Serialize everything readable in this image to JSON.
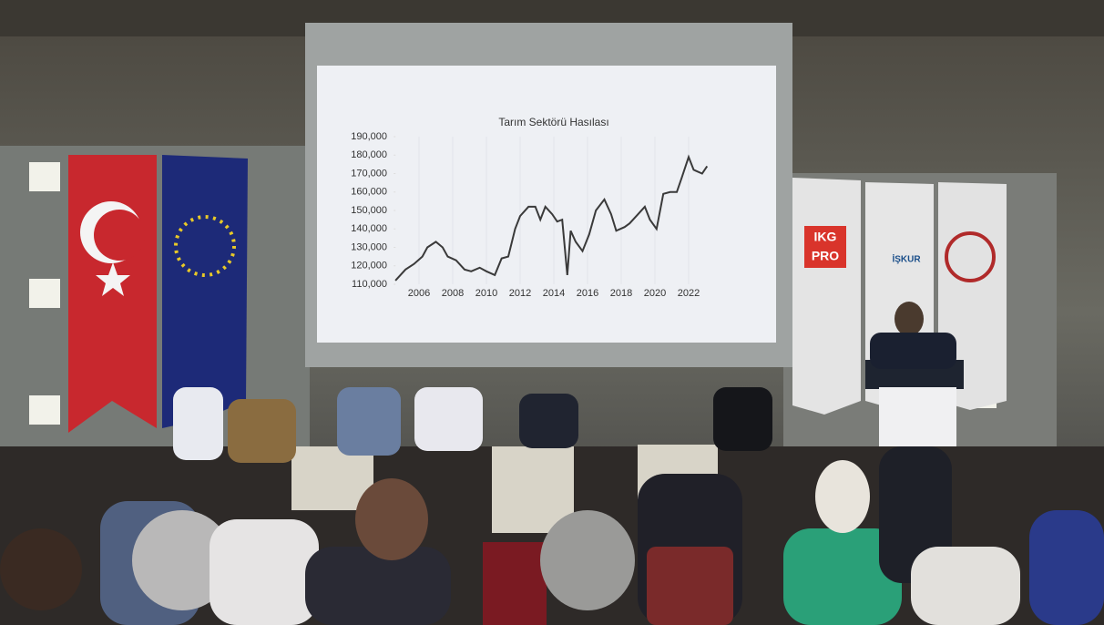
{
  "chart_data": {
    "type": "line",
    "title": "Tarım Sektörü Hasılası",
    "x": [
      2004.6,
      2005.2,
      2005.7,
      2006.2,
      2006.5,
      2007.0,
      2007.4,
      2007.7,
      2008.2,
      2008.7,
      2009.1,
      2009.6,
      2010.0,
      2010.5,
      2010.9,
      2011.3,
      2011.7,
      2012.0,
      2012.5,
      2012.9,
      2013.2,
      2013.5,
      2013.9,
      2014.2,
      2014.5,
      2014.8,
      2015.0,
      2015.3,
      2015.7,
      2016.1,
      2016.5,
      2017.0,
      2017.4,
      2017.7,
      2018.2,
      2018.5,
      2019.0,
      2019.4,
      2019.7,
      2020.1,
      2020.5,
      2020.9,
      2021.3,
      2021.6,
      2022.0,
      2022.3,
      2022.8,
      2023.1
    ],
    "values": [
      112000,
      118000,
      121000,
      125000,
      130000,
      133000,
      130000,
      125000,
      123000,
      118000,
      117000,
      119000,
      117000,
      115000,
      124000,
      125000,
      140000,
      147000,
      152000,
      152000,
      145000,
      152000,
      148000,
      144000,
      145000,
      115000,
      139000,
      133000,
      128000,
      137000,
      150000,
      156000,
      148000,
      139000,
      141000,
      143000,
      148000,
      152000,
      145000,
      140000,
      159000,
      160000,
      160000,
      168000,
      179000,
      172000,
      170000,
      174000
    ],
    "color": "#3a3a3a",
    "xlim": [
      2004.5,
      2023.2
    ],
    "xticks": [
      2006,
      2008,
      2010,
      2012,
      2014,
      2016,
      2018,
      2020,
      2022
    ],
    "ylim": [
      110000,
      190000
    ],
    "yticks": [
      {
        "value": 110000,
        "label": "110,000"
      },
      {
        "value": 120000,
        "label": "120,000"
      },
      {
        "value": 130000,
        "label": "130,000"
      },
      {
        "value": 140000,
        "label": "140,000"
      },
      {
        "value": 150000,
        "label": "150,000"
      },
      {
        "value": 160000,
        "label": "160,000"
      },
      {
        "value": 170000,
        "label": "170,000"
      },
      {
        "value": 180000,
        "label": "180,000"
      },
      {
        "value": 190000,
        "label": "190,000"
      }
    ]
  },
  "banners": {
    "logo_top": "IKG",
    "logo_bottom": "PRO",
    "iskur": "İŞKUR"
  }
}
